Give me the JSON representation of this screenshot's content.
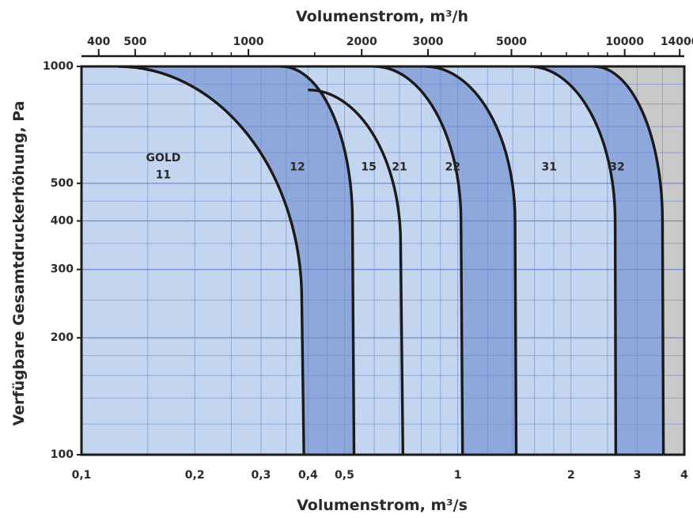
{
  "chart_data": {
    "type": "area",
    "title": "",
    "top_axis": {
      "label": "Volumenstrom, m³/h",
      "ticks": [
        400,
        500,
        1000,
        2000,
        3000,
        5000,
        10000,
        14000
      ],
      "tick_labels": [
        "400",
        "500",
        "1000",
        "2000",
        "3000",
        "5000",
        "10000",
        "14000"
      ]
    },
    "xlabel": "Volumenstrom, m³/s",
    "ylabel": "Verfügbare Gesamtdruckerhöhung, Pa",
    "x_scale": "log",
    "y_scale": "log",
    "xlim": [
      0.1,
      4
    ],
    "ylim": [
      100,
      1000
    ],
    "x_ticks": [
      0.1,
      0.2,
      0.3,
      0.4,
      0.5,
      1,
      2,
      3,
      4
    ],
    "x_tick_labels": [
      "0,1",
      "0,2",
      "0,3",
      "0,4",
      "0,5",
      "1",
      "2",
      "3",
      "4"
    ],
    "y_ticks": [
      100,
      200,
      300,
      400,
      500,
      1000
    ],
    "y_tick_labels": [
      "100",
      "200",
      "300",
      "400",
      "500",
      "1000"
    ],
    "grid": true,
    "colors": {
      "light_zone": "#c3d5ef",
      "dark_zone": "#8ea8dc",
      "grey_zone": "#c9c9c9",
      "grid": "#6f86cf",
      "boundary": "#1a1a1a"
    },
    "series": [
      {
        "name": "GOLD 11",
        "top_x": 0.125,
        "knee": [
          0.385,
          250
        ],
        "bottom_x": 0.39
      },
      {
        "name": "12",
        "top_x": 0.34,
        "knee": [
          0.525,
          400
        ],
        "bottom_x": 0.53
      },
      {
        "name": "15",
        "top_x": 0.4,
        "knee": [
          0.705,
          350
        ],
        "bottom_x": 0.715,
        "top_y": 870
      },
      {
        "name": "21",
        "top_x": 0.6,
        "knee": [
          1.02,
          400
        ],
        "bottom_x": 1.03
      },
      {
        "name": "22",
        "top_x": 0.82,
        "knee": [
          1.42,
          400
        ],
        "bottom_x": 1.43
      },
      {
        "name": "31",
        "top_x": 1.55,
        "knee": [
          2.62,
          400
        ],
        "bottom_x": 2.63
      },
      {
        "name": "32",
        "top_x": 2.3,
        "knee": [
          3.5,
          400
        ],
        "bottom_x": 3.52
      }
    ],
    "zone_labels": [
      {
        "text": "GOLD",
        "x": 0.165,
        "y": 580
      },
      {
        "text": "11",
        "x": 0.165,
        "y": 525
      },
      {
        "text": "12",
        "x": 0.375,
        "y": 550
      },
      {
        "text": "15",
        "x": 0.58,
        "y": 550
      },
      {
        "text": "21",
        "x": 0.7,
        "y": 550
      },
      {
        "text": "22",
        "x": 0.97,
        "y": 550
      },
      {
        "text": "31",
        "x": 1.75,
        "y": 550
      },
      {
        "text": "32",
        "x": 2.65,
        "y": 550
      }
    ]
  }
}
